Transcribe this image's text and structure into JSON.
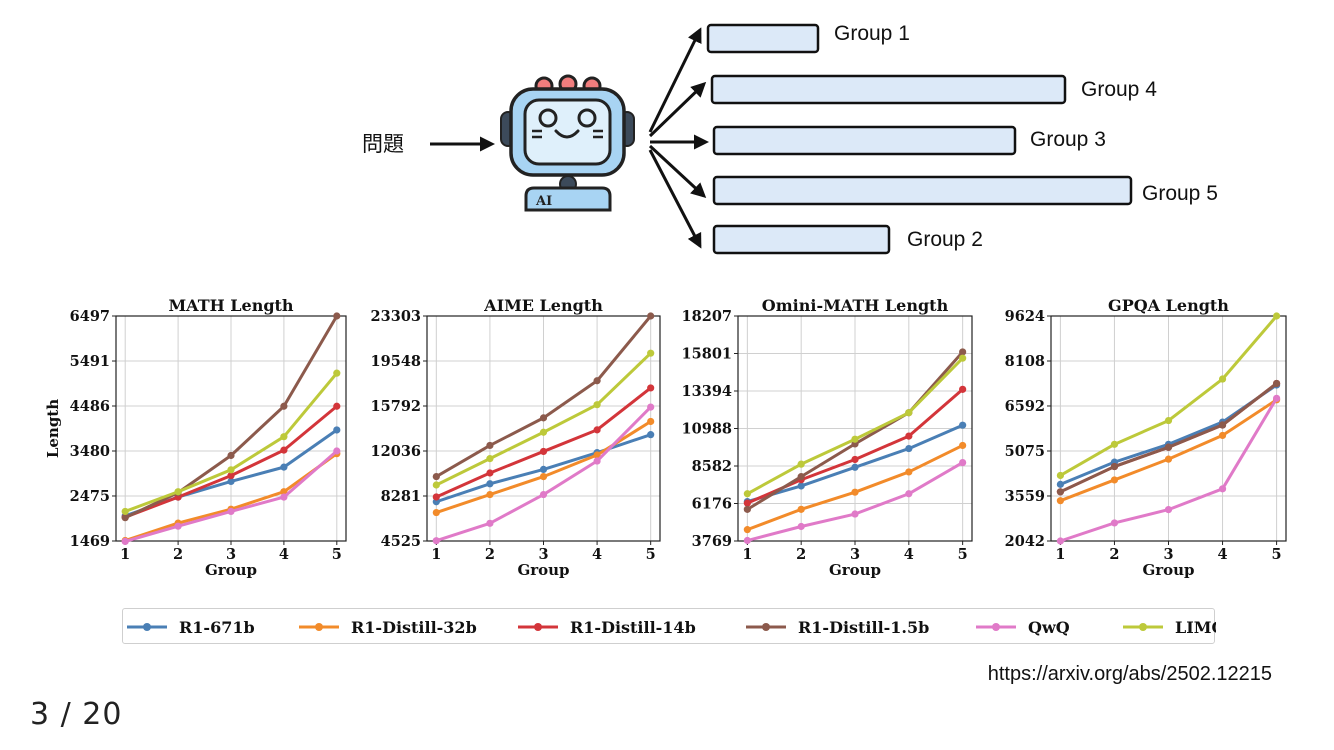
{
  "diagram": {
    "question": "問題",
    "robot_label": "AI",
    "groups": [
      {
        "label": "Group 1"
      },
      {
        "label": "Group 4"
      },
      {
        "label": "Group 3"
      },
      {
        "label": "Group 5"
      },
      {
        "label": "Group 2"
      }
    ],
    "colors": {
      "bar_fill": "#dce9f8",
      "robot_body": "#a8d4f3",
      "robot_ear": "#f07d7d"
    }
  },
  "chart_data": [
    {
      "type": "line",
      "title": "MATH Length",
      "xlabel": "Group",
      "ylabel": "Length",
      "x": [
        1,
        2,
        3,
        4,
        5
      ],
      "ylim": [
        1469,
        6497
      ],
      "yticks": [
        "1469",
        "2475",
        "3480",
        "4486",
        "5491",
        "6497"
      ],
      "grid": true,
      "series": [
        {
          "name": "R1-671b",
          "values": [
            2030,
            2450,
            2800,
            3120,
            3950
          ]
        },
        {
          "name": "R1-Distill-32b",
          "values": [
            1480,
            1870,
            2180,
            2570,
            3420
          ]
        },
        {
          "name": "R1-Distill-14b",
          "values": [
            2000,
            2450,
            2930,
            3500,
            4480
          ]
        },
        {
          "name": "R1-Distill-1.5b",
          "values": [
            1990,
            2550,
            3380,
            4480,
            6497
          ]
        },
        {
          "name": "QwQ",
          "values": [
            1460,
            1800,
            2130,
            2450,
            3480
          ]
        },
        {
          "name": "LIMO",
          "values": [
            2130,
            2570,
            3060,
            3800,
            5220
          ]
        }
      ]
    },
    {
      "type": "line",
      "title": "AIME Length",
      "xlabel": "Group",
      "ylabel": "",
      "x": [
        1,
        2,
        3,
        4,
        5
      ],
      "ylim": [
        4525,
        23303
      ],
      "yticks": [
        "4525",
        "8281",
        "12036",
        "15792",
        "19548",
        "23303"
      ],
      "grid": true,
      "series": [
        {
          "name": "R1-671b",
          "values": [
            7800,
            9300,
            10500,
            11900,
            13400
          ]
        },
        {
          "name": "R1-Distill-32b",
          "values": [
            6900,
            8400,
            9900,
            11700,
            14500
          ]
        },
        {
          "name": "R1-Distill-14b",
          "values": [
            8200,
            10200,
            12000,
            13800,
            17300
          ]
        },
        {
          "name": "R1-Distill-1.5b",
          "values": [
            9900,
            12500,
            14800,
            17900,
            23303
          ]
        },
        {
          "name": "QwQ",
          "values": [
            4550,
            6000,
            8400,
            11200,
            15700
          ]
        },
        {
          "name": "LIMO",
          "values": [
            9200,
            11400,
            13600,
            15900,
            20200
          ]
        }
      ]
    },
    {
      "type": "line",
      "title": "Omini-MATH Length",
      "xlabel": "Group",
      "ylabel": "",
      "x": [
        1,
        2,
        3,
        4,
        5
      ],
      "ylim": [
        3769,
        18207
      ],
      "yticks": [
        "3769",
        "6176",
        "8582",
        "10988",
        "13394",
        "15801",
        "18207"
      ],
      "grid": true,
      "series": [
        {
          "name": "R1-671b",
          "values": [
            6300,
            7300,
            8500,
            9700,
            11200
          ]
        },
        {
          "name": "R1-Distill-32b",
          "values": [
            4500,
            5800,
            6900,
            8200,
            9900
          ]
        },
        {
          "name": "R1-Distill-14b",
          "values": [
            6200,
            7700,
            9000,
            10500,
            13500
          ]
        },
        {
          "name": "R1-Distill-1.5b",
          "values": [
            5800,
            7900,
            10000,
            12000,
            15900
          ]
        },
        {
          "name": "QwQ",
          "values": [
            3800,
            4700,
            5500,
            6800,
            8800
          ]
        },
        {
          "name": "LIMO",
          "values": [
            6800,
            8700,
            10300,
            12000,
            15500
          ]
        }
      ]
    },
    {
      "type": "line",
      "title": "GPQA Length",
      "xlabel": "Group",
      "ylabel": "",
      "x": [
        1,
        2,
        3,
        4,
        5
      ],
      "ylim": [
        2042,
        9624
      ],
      "yticks": [
        "2042",
        "3559",
        "5075",
        "6592",
        "8108",
        "9624"
      ],
      "grid": true,
      "series": [
        {
          "name": "R1-671b",
          "values": [
            3950,
            4700,
            5300,
            6050,
            7300
          ]
        },
        {
          "name": "R1-Distill-32b",
          "values": [
            3400,
            4100,
            4800,
            5600,
            6800
          ]
        },
        {
          "name": "R1-Distill-14b",
          "values": [
            3700,
            4550,
            5200,
            5950,
            7350
          ]
        },
        {
          "name": "R1-Distill-1.5b",
          "values": [
            3700,
            4550,
            5200,
            5950,
            7350
          ]
        },
        {
          "name": "QwQ",
          "values": [
            2042,
            2650,
            3100,
            3800,
            6850
          ]
        },
        {
          "name": "LIMO",
          "values": [
            4250,
            5300,
            6100,
            7500,
            9624
          ]
        }
      ]
    }
  ],
  "legend": {
    "placement": "bottom",
    "items": [
      {
        "name": "R1-671b",
        "color": "#4a7fb5"
      },
      {
        "name": "R1-Distill-32b",
        "color": "#f28b2a"
      },
      {
        "name": "R1-Distill-14b",
        "color": "#d3353a"
      },
      {
        "name": "R1-Distill-1.5b",
        "color": "#8c5a4c"
      },
      {
        "name": "QwQ",
        "color": "#e07ac8"
      },
      {
        "name": "LIMO",
        "color": "#bdc93a"
      }
    ]
  },
  "footer": {
    "source": "https://arxiv.org/abs/2502.12215",
    "page": "3 / 20"
  }
}
